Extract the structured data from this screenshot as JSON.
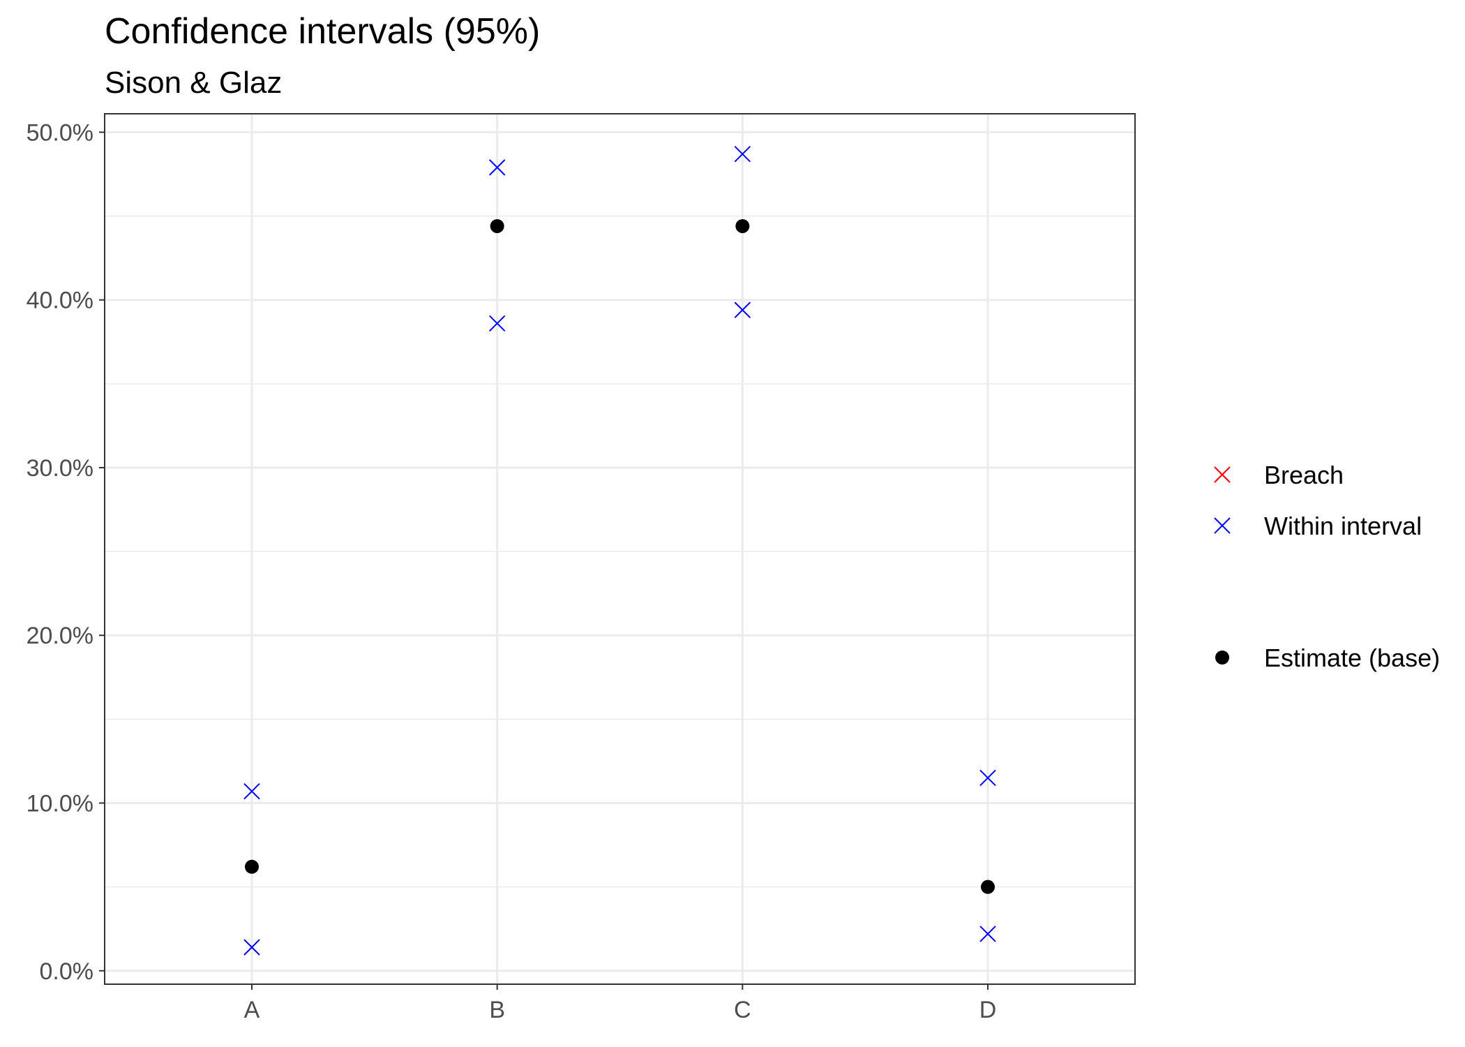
{
  "chart_data": {
    "type": "scatter",
    "title": "Confidence intervals (95%)",
    "subtitle": "Sison & Glaz",
    "xlabel": "",
    "ylabel": "",
    "categories": [
      "A",
      "B",
      "C",
      "D"
    ],
    "ylim": [
      -0.008,
      0.511
    ],
    "y_ticks": [
      0,
      0.1,
      0.2,
      0.3,
      0.4,
      0.5
    ],
    "y_tick_labels": [
      "0.0%",
      "10.0%",
      "20.0%",
      "30.0%",
      "40.0%",
      "50.0%"
    ],
    "grid": true,
    "legend_position": "right",
    "series": [
      {
        "name": "Breach",
        "marker": "x",
        "color": "#ff0000",
        "values": []
      },
      {
        "name": "Within interval",
        "marker": "x",
        "color": "#0000ff",
        "points": [
          {
            "x": "A",
            "y": 0.107
          },
          {
            "x": "A",
            "y": 0.014
          },
          {
            "x": "B",
            "y": 0.479
          },
          {
            "x": "B",
            "y": 0.386
          },
          {
            "x": "C",
            "y": 0.487
          },
          {
            "x": "C",
            "y": 0.394
          },
          {
            "x": "D",
            "y": 0.115
          },
          {
            "x": "D",
            "y": 0.022
          }
        ]
      },
      {
        "name": "Estimate (base)",
        "marker": "dot",
        "color": "#000000",
        "points": [
          {
            "x": "A",
            "y": 0.062
          },
          {
            "x": "B",
            "y": 0.444
          },
          {
            "x": "C",
            "y": 0.444
          },
          {
            "x": "D",
            "y": 0.05
          }
        ]
      }
    ]
  }
}
